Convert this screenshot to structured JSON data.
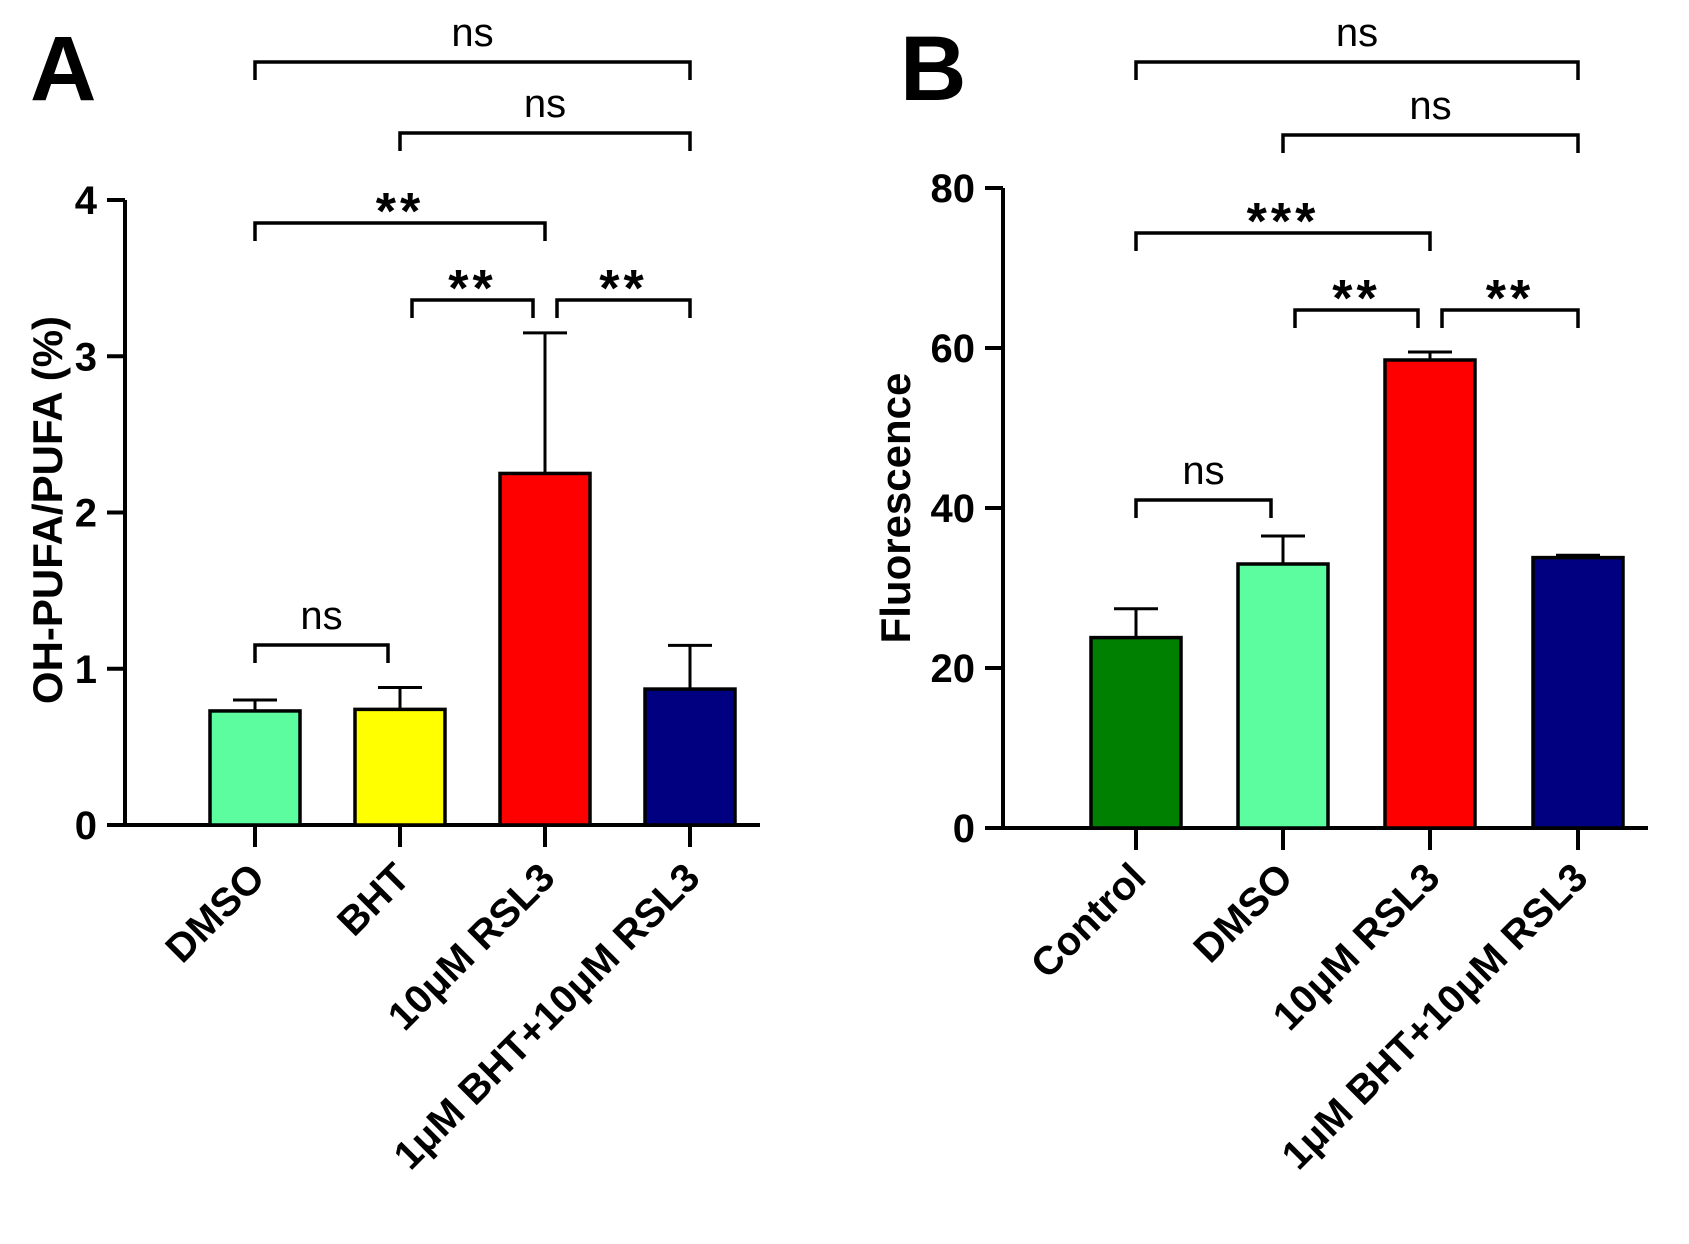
{
  "chart_data": [
    {
      "panel": "A",
      "type": "bar",
      "title": "",
      "xlabel": "",
      "ylabel": "OH-PUFA/PUFA (%)",
      "ylim": [
        0,
        4
      ],
      "yticks": [
        "0",
        "1",
        "2",
        "3",
        "4"
      ],
      "categories": [
        "DMSO",
        "BHT",
        "10μM RSL3",
        "1μM BHT+10μM RSL3"
      ],
      "values": [
        0.73,
        0.74,
        2.25,
        0.87
      ],
      "errors": [
        0.07,
        0.14,
        0.9,
        0.28
      ],
      "colors": [
        "#5cfd9e",
        "#ffff00",
        "#ff0000",
        "#000080"
      ],
      "significance": [
        {
          "from": 0,
          "to": 1,
          "label": "ns"
        },
        {
          "from": 1,
          "to": 2,
          "label": "**"
        },
        {
          "from": 2,
          "to": 3,
          "label": "**"
        },
        {
          "from": 0,
          "to": 2,
          "label": "**"
        },
        {
          "from": 1,
          "to": 3,
          "label": "ns"
        },
        {
          "from": 0,
          "to": 3,
          "label": "ns"
        }
      ]
    },
    {
      "panel": "B",
      "type": "bar",
      "title": "",
      "xlabel": "",
      "ylabel": "Fluorescence",
      "ylim": [
        0,
        80
      ],
      "yticks": [
        "0",
        "20",
        "40",
        "60",
        "80"
      ],
      "categories": [
        "Control",
        "DMSO",
        "10μM RSL3",
        "1μM BHT+10μM RSL3"
      ],
      "values": [
        23.8,
        33.0,
        58.5,
        33.8
      ],
      "errors": [
        3.6,
        3.5,
        1.0,
        0.3
      ],
      "colors": [
        "#008000",
        "#5cfd9e",
        "#ff0000",
        "#000080"
      ],
      "significance": [
        {
          "from": 0,
          "to": 1,
          "label": "ns"
        },
        {
          "from": 1,
          "to": 2,
          "label": "**"
        },
        {
          "from": 2,
          "to": 3,
          "label": "**"
        },
        {
          "from": 0,
          "to": 2,
          "label": "***"
        },
        {
          "from": 1,
          "to": 3,
          "label": "ns"
        },
        {
          "from": 0,
          "to": 3,
          "label": "ns"
        }
      ]
    }
  ]
}
